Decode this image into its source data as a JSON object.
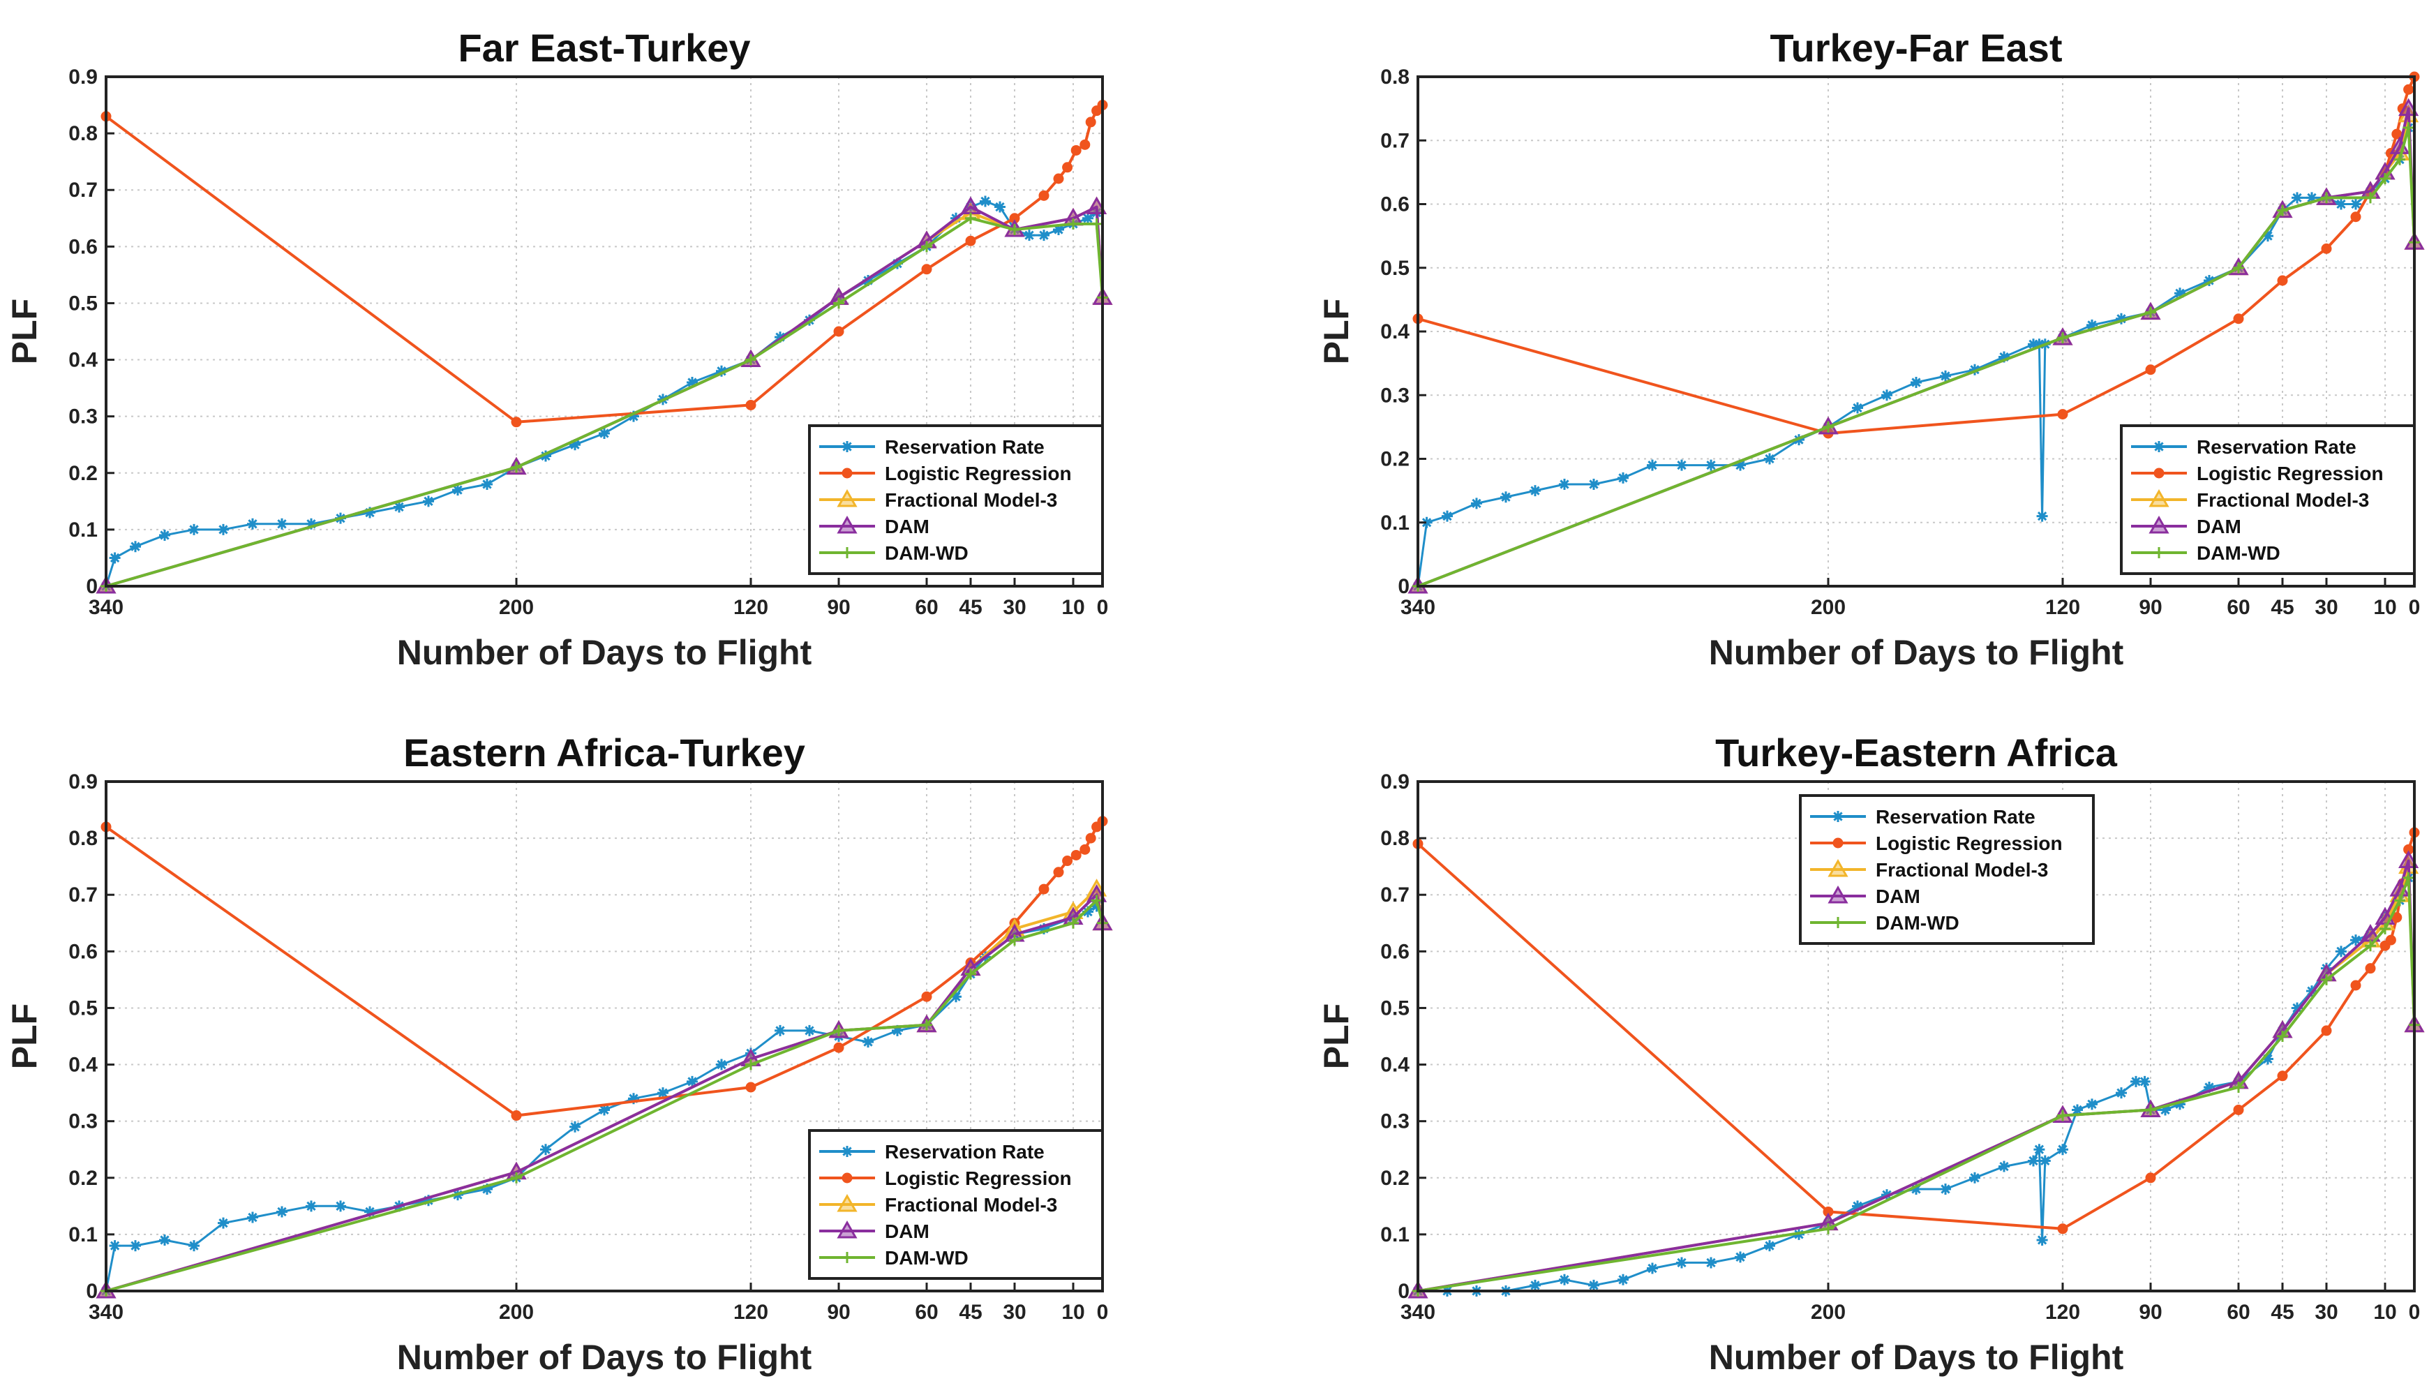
{
  "colors": {
    "reservation_rate": "#1f8ec9",
    "logistic_regression": "#f0541d",
    "fractional_model_3": "#f2b52a",
    "dam": "#8a2e9e",
    "dam_wd": "#6fb530"
  },
  "chart_data": [
    {
      "type": "line",
      "title": "Far East-Turkey",
      "xlabel": "Number of Days to Flight",
      "ylabel": "PLF",
      "xlim": [
        340,
        0
      ],
      "ylim": [
        0,
        0.9
      ],
      "xticks": [
        340,
        200,
        120,
        90,
        60,
        45,
        30,
        10,
        0
      ],
      "xtick_labels": [
        "340",
        "200",
        "120",
        "90",
        "60",
        "45",
        "30",
        "10",
        "0"
      ],
      "yticks": [
        0,
        0.1,
        0.2,
        0.3,
        0.4,
        0.5,
        0.6,
        0.7,
        0.8,
        0.9
      ],
      "ytick_labels": [
        "0",
        "0.1",
        "0.2",
        "0.3",
        "0.4",
        "0.5",
        "0.6",
        "0.7",
        "0.8",
        "0.9"
      ],
      "grid": true,
      "legend_position": "bottom-right",
      "series": [
        {
          "name": "Reservation Rate",
          "color_key": "reservation_rate",
          "marker": "asterisk",
          "x": [
            340,
            337,
            330,
            320,
            310,
            300,
            290,
            280,
            270,
            260,
            250,
            240,
            230,
            220,
            210,
            200,
            190,
            180,
            170,
            160,
            150,
            140,
            130,
            120,
            110,
            100,
            90,
            80,
            70,
            60,
            50,
            45,
            40,
            35,
            30,
            25,
            20,
            15,
            10,
            5,
            2
          ],
          "y": [
            0,
            0.05,
            0.07,
            0.09,
            0.1,
            0.1,
            0.11,
            0.11,
            0.11,
            0.12,
            0.13,
            0.14,
            0.15,
            0.17,
            0.18,
            0.21,
            0.23,
            0.25,
            0.27,
            0.3,
            0.33,
            0.36,
            0.38,
            0.4,
            0.44,
            0.47,
            0.51,
            0.54,
            0.57,
            0.6,
            0.65,
            0.67,
            0.68,
            0.67,
            0.63,
            0.62,
            0.62,
            0.63,
            0.64,
            0.65,
            0.66
          ]
        },
        {
          "name": "Logistic Regression",
          "color_key": "logistic_regression",
          "marker": "circle",
          "x": [
            340,
            200,
            120,
            90,
            60,
            45,
            30,
            20,
            15,
            12,
            9,
            6,
            4,
            2,
            0
          ],
          "y": [
            0.83,
            0.29,
            0.32,
            0.45,
            0.56,
            0.61,
            0.65,
            0.69,
            0.72,
            0.74,
            0.77,
            0.78,
            0.82,
            0.84,
            0.85
          ]
        },
        {
          "name": "Fractional Model-3",
          "color_key": "fractional_model_3",
          "marker": "triangle",
          "x": [
            340,
            200,
            120,
            90,
            60,
            45,
            30,
            10,
            2,
            0
          ],
          "y": [
            0,
            0.21,
            0.4,
            0.51,
            0.61,
            0.66,
            0.63,
            0.65,
            0.67,
            0.51
          ]
        },
        {
          "name": "DAM",
          "color_key": "dam",
          "marker": "triangle",
          "x": [
            340,
            200,
            120,
            90,
            60,
            45,
            30,
            10,
            2,
            0
          ],
          "y": [
            0,
            0.21,
            0.4,
            0.51,
            0.61,
            0.67,
            0.63,
            0.65,
            0.67,
            0.51
          ]
        },
        {
          "name": "DAM-WD",
          "color_key": "dam_wd",
          "marker": "plus",
          "x": [
            340,
            200,
            120,
            90,
            60,
            45,
            30,
            10,
            2,
            0
          ],
          "y": [
            0,
            0.21,
            0.4,
            0.5,
            0.6,
            0.65,
            0.63,
            0.64,
            0.64,
            0.51
          ]
        }
      ]
    },
    {
      "type": "line",
      "title": "Turkey-Far East",
      "xlabel": "Number of Days to Flight",
      "ylabel": "PLF",
      "xlim": [
        340,
        0
      ],
      "ylim": [
        0,
        0.8
      ],
      "xticks": [
        340,
        200,
        120,
        90,
        60,
        45,
        30,
        10,
        0
      ],
      "xtick_labels": [
        "340",
        "200",
        "120",
        "90",
        "60",
        "45",
        "30",
        "10",
        "0"
      ],
      "yticks": [
        0,
        0.1,
        0.2,
        0.3,
        0.4,
        0.5,
        0.6,
        0.7,
        0.8
      ],
      "ytick_labels": [
        "0",
        "0.1",
        "0.2",
        "0.3",
        "0.4",
        "0.5",
        "0.6",
        "0.7",
        "0.8"
      ],
      "grid": true,
      "legend_position": "bottom-right",
      "series": [
        {
          "name": "Reservation Rate",
          "color_key": "reservation_rate",
          "marker": "asterisk",
          "x": [
            340,
            337,
            330,
            320,
            310,
            300,
            290,
            280,
            270,
            260,
            250,
            240,
            230,
            220,
            210,
            200,
            190,
            180,
            170,
            160,
            150,
            140,
            130,
            128,
            127,
            126,
            120,
            110,
            100,
            90,
            80,
            70,
            60,
            50,
            45,
            40,
            35,
            30,
            25,
            20,
            15,
            10,
            5,
            2
          ],
          "y": [
            0,
            0.1,
            0.11,
            0.13,
            0.14,
            0.15,
            0.16,
            0.16,
            0.17,
            0.19,
            0.19,
            0.19,
            0.19,
            0.2,
            0.23,
            0.25,
            0.28,
            0.3,
            0.32,
            0.33,
            0.34,
            0.36,
            0.38,
            0.38,
            0.11,
            0.38,
            0.39,
            0.41,
            0.42,
            0.43,
            0.46,
            0.48,
            0.5,
            0.55,
            0.59,
            0.61,
            0.61,
            0.61,
            0.6,
            0.6,
            0.62,
            0.64,
            0.67,
            0.72
          ]
        },
        {
          "name": "Logistic Regression",
          "color_key": "logistic_regression",
          "marker": "circle",
          "x": [
            340,
            200,
            120,
            90,
            60,
            45,
            30,
            20,
            15,
            10,
            8,
            6,
            4,
            2,
            0
          ],
          "y": [
            0.42,
            0.24,
            0.27,
            0.34,
            0.42,
            0.48,
            0.53,
            0.58,
            0.62,
            0.65,
            0.68,
            0.71,
            0.75,
            0.78,
            0.8
          ]
        },
        {
          "name": "Fractional Model-3",
          "color_key": "fractional_model_3",
          "marker": "triangle",
          "x": [
            340,
            200,
            120,
            90,
            60,
            45,
            30,
            15,
            10,
            5,
            2,
            0
          ],
          "y": [
            0,
            0.25,
            0.39,
            0.43,
            0.5,
            0.59,
            0.61,
            0.62,
            0.65,
            0.68,
            0.74,
            0.54
          ]
        },
        {
          "name": "DAM",
          "color_key": "dam",
          "marker": "triangle",
          "x": [
            340,
            200,
            120,
            90,
            60,
            45,
            30,
            15,
            10,
            5,
            2,
            0
          ],
          "y": [
            0,
            0.25,
            0.39,
            0.43,
            0.5,
            0.59,
            0.61,
            0.62,
            0.65,
            0.69,
            0.75,
            0.54
          ]
        },
        {
          "name": "DAM-WD",
          "color_key": "dam_wd",
          "marker": "plus",
          "x": [
            340,
            200,
            120,
            90,
            60,
            45,
            30,
            15,
            10,
            5,
            2,
            0
          ],
          "y": [
            0,
            0.25,
            0.39,
            0.43,
            0.5,
            0.59,
            0.61,
            0.61,
            0.64,
            0.67,
            0.72,
            0.54
          ]
        }
      ]
    },
    {
      "type": "line",
      "title": "Eastern Africa-Turkey",
      "xlabel": "Number of Days to Flight",
      "ylabel": "PLF",
      "xlim": [
        340,
        0
      ],
      "ylim": [
        0,
        0.9
      ],
      "xticks": [
        340,
        200,
        120,
        90,
        60,
        45,
        30,
        10,
        0
      ],
      "xtick_labels": [
        "340",
        "200",
        "120",
        "90",
        "60",
        "45",
        "30",
        "10",
        "0"
      ],
      "yticks": [
        0,
        0.1,
        0.2,
        0.3,
        0.4,
        0.5,
        0.6,
        0.7,
        0.8,
        0.9
      ],
      "ytick_labels": [
        "0",
        "0.1",
        "0.2",
        "0.3",
        "0.4",
        "0.5",
        "0.6",
        "0.7",
        "0.8",
        "0.9"
      ],
      "grid": true,
      "legend_position": "bottom-right",
      "series": [
        {
          "name": "Reservation Rate",
          "color_key": "reservation_rate",
          "marker": "asterisk",
          "x": [
            340,
            337,
            330,
            320,
            310,
            300,
            290,
            280,
            270,
            260,
            250,
            240,
            230,
            220,
            210,
            200,
            190,
            180,
            170,
            160,
            150,
            140,
            130,
            120,
            110,
            100,
            90,
            80,
            70,
            60,
            50,
            45,
            40,
            30,
            20,
            10,
            5,
            2
          ],
          "y": [
            0,
            0.08,
            0.08,
            0.09,
            0.08,
            0.12,
            0.13,
            0.14,
            0.15,
            0.15,
            0.14,
            0.15,
            0.16,
            0.17,
            0.18,
            0.2,
            0.25,
            0.29,
            0.32,
            0.34,
            0.35,
            0.37,
            0.4,
            0.42,
            0.46,
            0.46,
            0.45,
            0.44,
            0.46,
            0.47,
            0.52,
            0.56,
            0.59,
            0.63,
            0.64,
            0.66,
            0.67,
            0.68
          ]
        },
        {
          "name": "Logistic Regression",
          "color_key": "logistic_regression",
          "marker": "circle",
          "x": [
            340,
            200,
            120,
            90,
            60,
            45,
            30,
            20,
            15,
            12,
            9,
            6,
            4,
            2,
            0
          ],
          "y": [
            0.82,
            0.31,
            0.36,
            0.43,
            0.52,
            0.58,
            0.65,
            0.71,
            0.74,
            0.76,
            0.77,
            0.78,
            0.8,
            0.82,
            0.83
          ]
        },
        {
          "name": "Fractional Model-3",
          "color_key": "fractional_model_3",
          "marker": "triangle",
          "x": [
            340,
            200,
            120,
            90,
            60,
            45,
            30,
            10,
            2,
            0
          ],
          "y": [
            0,
            0.21,
            0.41,
            0.46,
            0.47,
            0.57,
            0.64,
            0.67,
            0.71,
            0.65
          ]
        },
        {
          "name": "DAM",
          "color_key": "dam",
          "marker": "triangle",
          "x": [
            340,
            200,
            120,
            90,
            60,
            45,
            30,
            10,
            2,
            0
          ],
          "y": [
            0,
            0.21,
            0.41,
            0.46,
            0.47,
            0.57,
            0.63,
            0.66,
            0.7,
            0.65
          ]
        },
        {
          "name": "DAM-WD",
          "color_key": "dam_wd",
          "marker": "plus",
          "x": [
            340,
            200,
            120,
            90,
            60,
            45,
            30,
            10,
            2,
            0
          ],
          "y": [
            0,
            0.2,
            0.4,
            0.46,
            0.47,
            0.56,
            0.62,
            0.65,
            0.69,
            0.65
          ]
        }
      ]
    },
    {
      "type": "line",
      "title": "Turkey-Eastern Africa",
      "xlabel": "Number of Days to Flight",
      "ylabel": "PLF",
      "xlim": [
        340,
        0
      ],
      "ylim": [
        0,
        0.9
      ],
      "xticks": [
        340,
        200,
        120,
        90,
        60,
        45,
        30,
        10,
        0
      ],
      "xtick_labels": [
        "340",
        "200",
        "120",
        "90",
        "60",
        "45",
        "30",
        "10",
        "0"
      ],
      "yticks": [
        0,
        0.1,
        0.2,
        0.3,
        0.4,
        0.5,
        0.6,
        0.7,
        0.8,
        0.9
      ],
      "ytick_labels": [
        "0",
        "0.1",
        "0.2",
        "0.3",
        "0.4",
        "0.5",
        "0.6",
        "0.7",
        "0.8",
        "0.9"
      ],
      "grid": true,
      "legend_position": "top-center",
      "series": [
        {
          "name": "Reservation Rate",
          "color_key": "reservation_rate",
          "marker": "asterisk",
          "x": [
            340,
            330,
            320,
            310,
            300,
            290,
            280,
            270,
            260,
            250,
            240,
            230,
            220,
            210,
            200,
            190,
            180,
            170,
            160,
            150,
            140,
            130,
            128,
            127,
            126,
            120,
            115,
            110,
            100,
            95,
            92,
            90,
            85,
            80,
            70,
            60,
            50,
            45,
            40,
            35,
            30,
            25,
            20,
            15,
            10,
            5,
            2
          ],
          "y": [
            0,
            0.0,
            0.0,
            0.0,
            0.01,
            0.02,
            0.01,
            0.02,
            0.04,
            0.05,
            0.05,
            0.06,
            0.08,
            0.1,
            0.12,
            0.15,
            0.17,
            0.18,
            0.18,
            0.2,
            0.22,
            0.23,
            0.25,
            0.09,
            0.23,
            0.25,
            0.32,
            0.33,
            0.35,
            0.37,
            0.37,
            0.32,
            0.32,
            0.33,
            0.36,
            0.37,
            0.41,
            0.46,
            0.5,
            0.53,
            0.57,
            0.6,
            0.62,
            0.63,
            0.66,
            0.69,
            0.73
          ]
        },
        {
          "name": "Logistic Regression",
          "color_key": "logistic_regression",
          "marker": "circle",
          "x": [
            340,
            200,
            120,
            90,
            60,
            45,
            30,
            20,
            15,
            10,
            8,
            6,
            4,
            2,
            0
          ],
          "y": [
            0.79,
            0.14,
            0.11,
            0.2,
            0.32,
            0.38,
            0.46,
            0.54,
            0.57,
            0.61,
            0.62,
            0.66,
            0.72,
            0.78,
            0.81
          ]
        },
        {
          "name": "Fractional Model-3",
          "color_key": "fractional_model_3",
          "marker": "triangle",
          "x": [
            340,
            200,
            120,
            90,
            60,
            45,
            30,
            15,
            10,
            5,
            2,
            0
          ],
          "y": [
            0,
            0.12,
            0.31,
            0.32,
            0.37,
            0.46,
            0.56,
            0.62,
            0.65,
            0.7,
            0.75,
            0.47
          ]
        },
        {
          "name": "DAM",
          "color_key": "dam",
          "marker": "triangle",
          "x": [
            340,
            200,
            120,
            90,
            60,
            45,
            30,
            15,
            10,
            5,
            2,
            0
          ],
          "y": [
            0,
            0.12,
            0.31,
            0.32,
            0.37,
            0.46,
            0.56,
            0.63,
            0.66,
            0.71,
            0.76,
            0.47
          ]
        },
        {
          "name": "DAM-WD",
          "color_key": "dam_wd",
          "marker": "plus",
          "x": [
            340,
            200,
            120,
            90,
            60,
            45,
            30,
            15,
            10,
            5,
            2,
            0
          ],
          "y": [
            0,
            0.11,
            0.31,
            0.32,
            0.36,
            0.45,
            0.55,
            0.61,
            0.64,
            0.69,
            0.73,
            0.47
          ]
        }
      ]
    }
  ]
}
